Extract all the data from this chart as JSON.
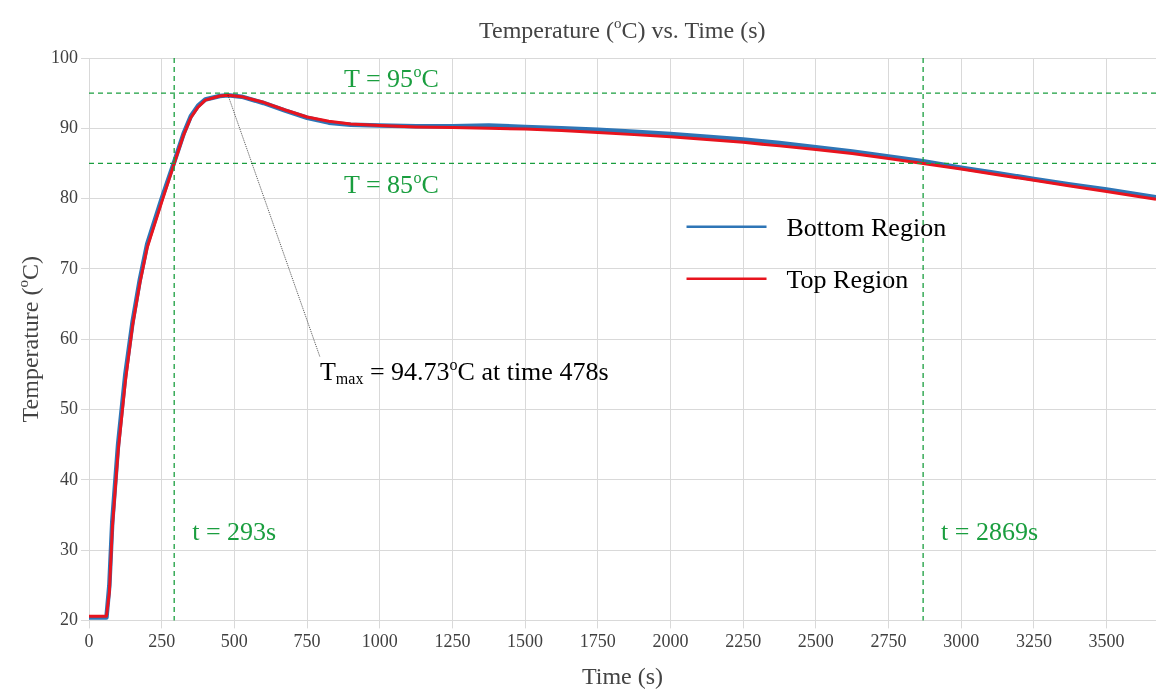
{
  "chart_data": {
    "type": "line",
    "title": "Temperature ($^{o}$C) vs. Time (s)",
    "xlabel": "Time (s)",
    "ylabel": "Temperature ($^{o}$C)",
    "x": [
      0,
      30,
      60,
      70,
      80,
      100,
      125,
      150,
      175,
      200,
      250,
      293,
      325,
      350,
      375,
      400,
      450,
      478,
      525,
      600,
      675,
      750,
      825,
      900,
      1000,
      1125,
      1250,
      1375,
      1500,
      1625,
      1750,
      1875,
      2000,
      2125,
      2250,
      2375,
      2500,
      2625,
      2750,
      2869,
      3000,
      3125,
      3250,
      3375,
      3500,
      3670
    ],
    "series": [
      {
        "name": "Bottom Region",
        "color": "#2e75b6",
        "values": [
          20.4,
          20.4,
          20.4,
          25,
          34,
          45,
          55,
          62.5,
          68.5,
          73.5,
          80,
          85.2,
          89.2,
          91.7,
          93.2,
          94.1,
          94.6,
          94.7,
          94.5,
          93.6,
          92.5,
          91.5,
          90.8,
          90.5,
          90.4,
          90.3,
          90.3,
          90.4,
          90.2,
          90,
          89.8,
          89.5,
          89.2,
          88.8,
          88.4,
          87.9,
          87.3,
          86.7,
          86,
          85.3,
          84.4,
          83.6,
          82.8,
          82,
          81.3,
          80.2
        ]
      },
      {
        "name": "Top Region",
        "color": "#e8141e",
        "values": [
          20.6,
          20.6,
          20.6,
          24,
          33,
          44,
          54,
          62,
          68,
          73,
          79.5,
          85,
          89,
          91.5,
          93,
          94,
          94.6,
          94.7,
          94.5,
          93.7,
          92.6,
          91.6,
          91,
          90.6,
          90.4,
          90.2,
          90.1,
          90,
          89.9,
          89.7,
          89.4,
          89.1,
          88.8,
          88.4,
          88,
          87.5,
          87,
          86.4,
          85.7,
          85,
          84.2,
          83.4,
          82.6,
          81.8,
          81,
          79.9
        ]
      }
    ],
    "xlim": [
      0,
      3670
    ],
    "xticks": [
      0,
      250,
      500,
      750,
      1000,
      1250,
      1500,
      1750,
      2000,
      2250,
      2500,
      2750,
      3000,
      3250,
      3500
    ],
    "ylim": [
      20,
      100
    ],
    "yticks": [
      20,
      30,
      40,
      50,
      60,
      70,
      80,
      90,
      100
    ],
    "grid": true,
    "legend": "right",
    "marker": "none",
    "ref_lines": [
      {
        "axis": "y",
        "value": 95,
        "label": "T = 95$^{o}$C",
        "color": "#1a9e3f",
        "line_style": "dashed"
      },
      {
        "axis": "y",
        "value": 85,
        "label": "T = 85$^{o}$C",
        "color": "#1a9e3f",
        "line_style": "dashed"
      },
      {
        "axis": "x",
        "value": 293,
        "label": "t = 293s",
        "color": "#1a9e3f",
        "line_style": "dashed"
      },
      {
        "axis": "x",
        "value": 2869,
        "label": "t = 2869s",
        "color": "#1a9e3f",
        "line_style": "dashed"
      }
    ],
    "annotations": [
      {
        "text": "T$_{max}$ = 94.73$^{o}$C at time 478s",
        "x": 478,
        "y": 94.73
      }
    ]
  }
}
